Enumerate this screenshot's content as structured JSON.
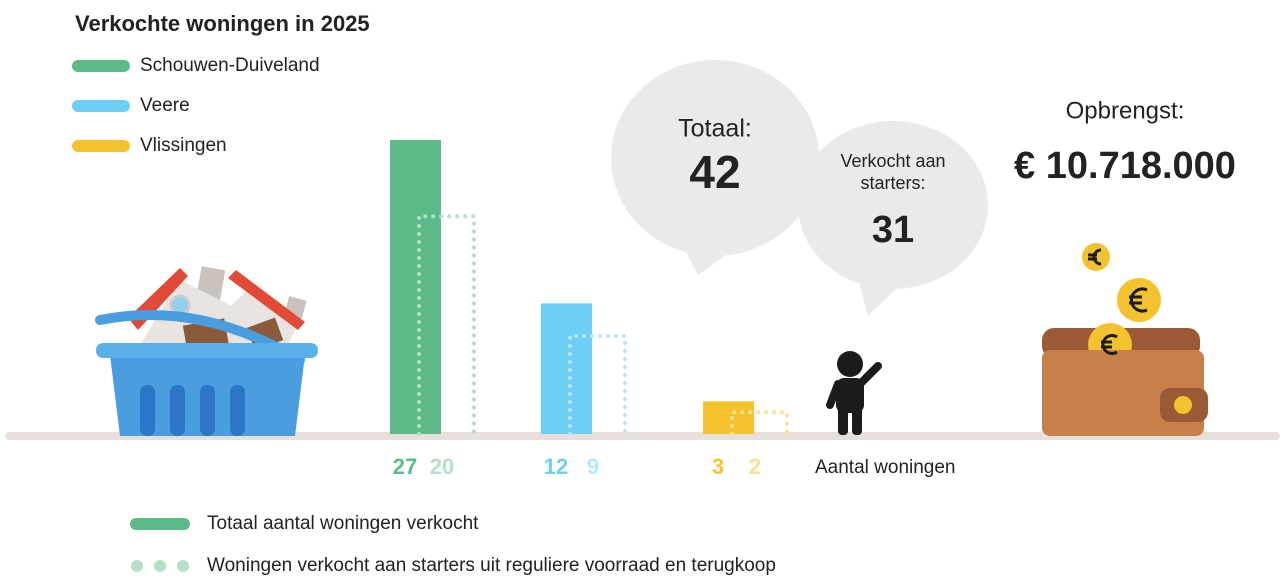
{
  "chart_data": {
    "type": "bar",
    "title": "Verkochte woningen in 2025",
    "categories": [
      "Schouwen-Duiveland",
      "Veere",
      "Vlissingen"
    ],
    "series": [
      {
        "name": "Totaal aantal woningen verkocht",
        "style": "solid",
        "colors": [
          "#5dbb8a",
          "#6dcff6",
          "#f5c22f"
        ],
        "values": [
          27,
          12,
          3
        ]
      },
      {
        "name": "Woningen verkocht aan starters uit reguliere voorraad en terugkoop",
        "style": "dotted",
        "colors": [
          "#b3e0c7",
          "#b8e7fa",
          "#f9df91"
        ],
        "values": [
          20,
          9,
          2
        ]
      }
    ],
    "x_label": "Aantal woningen",
    "annotations": {
      "total_label": "Totaal:",
      "total": 42,
      "starters_label": "Verkocht aan starters:",
      "starters": 31,
      "revenue_label": "Opbrengst:",
      "revenue": "€ 10.718.000"
    }
  }
}
